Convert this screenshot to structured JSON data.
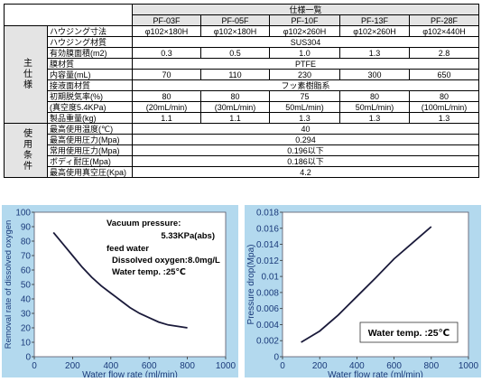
{
  "spec_table": {
    "title": "仕様一覧",
    "models": [
      "PF-03F",
      "PF-05F",
      "PF-10F",
      "PF-13F",
      "PF-28F"
    ],
    "section_main": "主仕様",
    "section_use": "使用条件",
    "rows": [
      {
        "label": "ハウジング寸法",
        "values": [
          "φ102×180H",
          "φ102×180H",
          "φ102×260H",
          "φ102×260H",
          "φ102×440H"
        ]
      },
      {
        "label": "ハウジング材質",
        "merged": "SUS304"
      },
      {
        "label": "有効膜面積(m2)",
        "values": [
          "0.3",
          "0.5",
          "1.0",
          "1.3",
          "2.8"
        ]
      },
      {
        "label": "膜材質",
        "merged": "PTFE"
      },
      {
        "label": "内容量(mL)",
        "values": [
          "70",
          "110",
          "230",
          "300",
          "650"
        ]
      },
      {
        "label": "接液面材質",
        "merged": "フッ素樹脂系"
      },
      {
        "label": "初期脱気率(%)",
        "values": [
          "80",
          "80",
          "75",
          "80",
          "80"
        ]
      },
      {
        "label": "(真空度5.4KPa)",
        "values": [
          "(20mL/min)",
          "(30mL/min)",
          "50mL/min)",
          "50mL/min)",
          "(100mL/min)"
        ]
      },
      {
        "label": "製品重量(kg)",
        "values": [
          "1.1",
          "1.1",
          "1.3",
          "1.3",
          "1.3"
        ]
      }
    ],
    "use_rows": [
      {
        "label": "最高使用温度(℃)",
        "merged": "40"
      },
      {
        "label": "最高使用圧力(Mpa)",
        "merged": "0.294"
      },
      {
        "label": "常用使用圧力(Mpa)",
        "merged": "0.196以下"
      },
      {
        "label": "ボディ耐圧(Mpa)",
        "merged": "0.186以下"
      },
      {
        "label": "最高使用真空圧(Kpa)",
        "merged": "4.2"
      }
    ]
  },
  "colors": {
    "panel_bg": "#b3d9ee",
    "plot_bg": "#ffffff",
    "curve": "#1a1a3a",
    "axis_text": "#1a3a7a",
    "header_bg": "#e4e4e4"
  },
  "chart_data": [
    {
      "type": "line",
      "title": "",
      "xlabel": "Water flow rate (ml/min)",
      "ylabel": "Removal rate of dissolved oxygen",
      "xlim": [
        0,
        1000
      ],
      "ylim": [
        0,
        100
      ],
      "xticks": [
        0,
        200,
        400,
        600,
        800,
        1000
      ],
      "yticks": [
        0,
        10,
        20,
        30,
        40,
        50,
        60,
        70,
        80,
        90,
        100
      ],
      "grid": false,
      "series": [
        {
          "x": [
            100,
            150,
            200,
            250,
            300,
            350,
            400,
            450,
            500,
            550,
            600,
            650,
            700,
            750,
            800
          ],
          "y": [
            86,
            78,
            70,
            62,
            55,
            49,
            44,
            39,
            34,
            30,
            27,
            24,
            22,
            21,
            20
          ]
        }
      ],
      "annotation": {
        "line1": "Vacuum pressure:",
        "line2": "5.33KPa(abs)",
        "line3": "feed water",
        "line4": "Dissolved oxygen:8.0mg/L",
        "line5": "Water temp.    :25℃"
      }
    },
    {
      "type": "line",
      "title": "",
      "xlabel": "Water flow rate (ml/min)",
      "ylabel": "Pressure drop(Mpa)",
      "xlim": [
        0,
        1000
      ],
      "ylim": [
        0,
        0.018
      ],
      "xticks": [
        0,
        200,
        400,
        600,
        800,
        1000
      ],
      "yticks": [
        "0",
        "0.002",
        "0.004",
        "0.006",
        "0.008",
        "0.01",
        "0.012",
        "0.014",
        "0.016",
        "0.018"
      ],
      "grid": false,
      "series": [
        {
          "x": [
            100,
            200,
            300,
            400,
            500,
            600,
            700,
            800
          ],
          "y": [
            0.0018,
            0.0032,
            0.0052,
            0.0075,
            0.0098,
            0.0122,
            0.0142,
            0.0162
          ]
        }
      ],
      "annotation": {
        "line1": "Water temp. :25℃"
      }
    }
  ]
}
